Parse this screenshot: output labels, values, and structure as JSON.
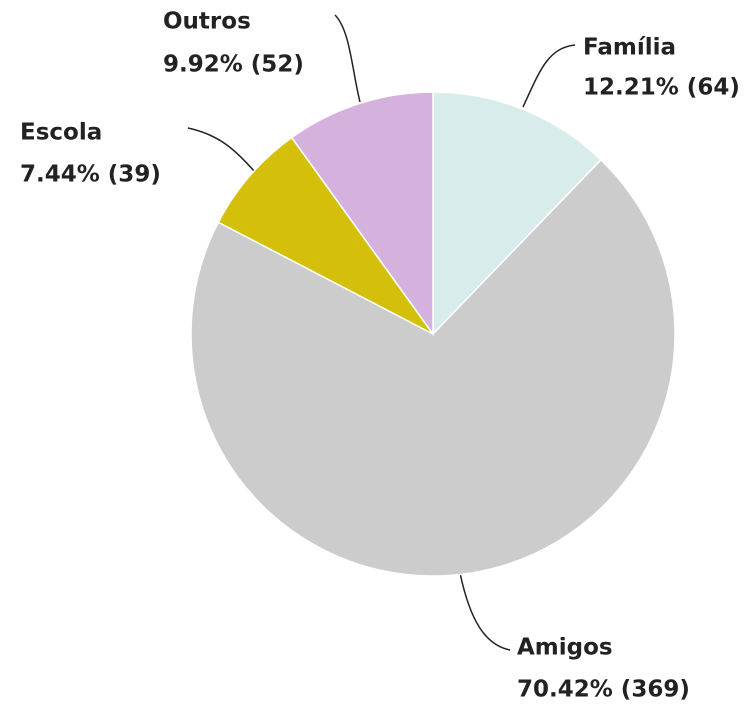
{
  "chart_data": {
    "type": "pie",
    "categories": [
      "Família",
      "Amigos",
      "Escola",
      "Outros"
    ],
    "values": [
      12.21,
      70.42,
      7.44,
      9.92
    ],
    "value_labels": [
      "12.21% (64)",
      "70.42% (369)",
      "7.44% (39)",
      "9.92% (52)"
    ],
    "colors": [
      "#d7eceb",
      "#cccccc",
      "#d4c00a",
      "#d5b1dd"
    ]
  }
}
